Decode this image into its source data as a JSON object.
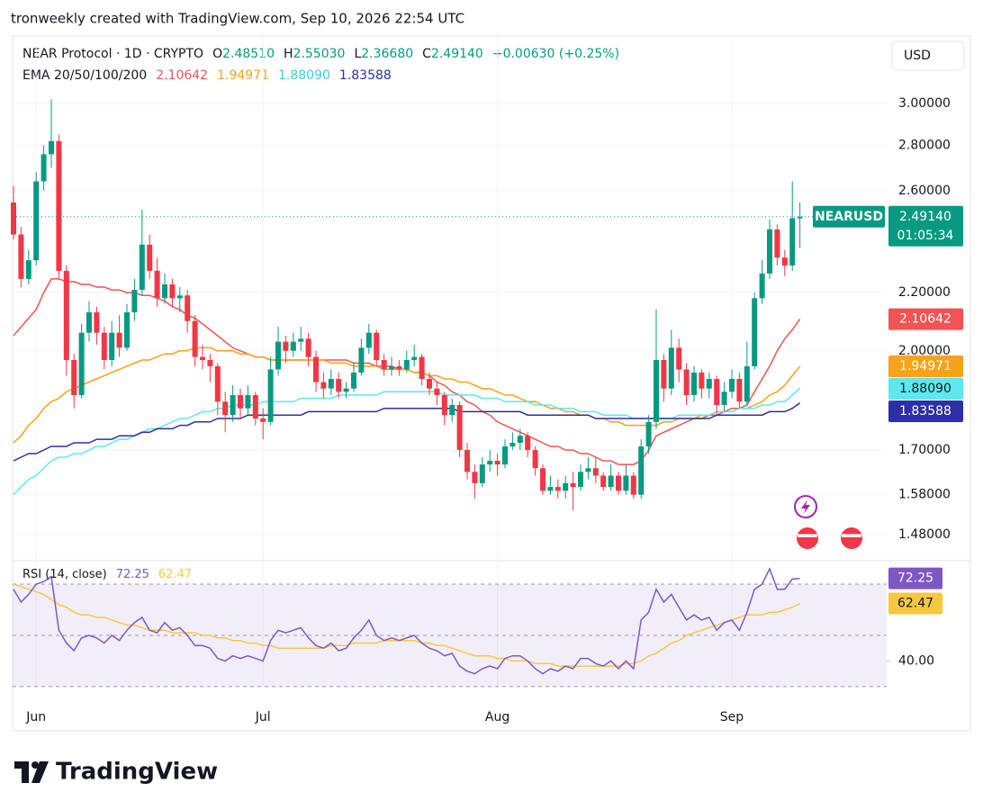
{
  "header": {
    "caption": "tronweekly created with TradingView.com, Sep 10, 2026 22:54 UTC",
    "symbol": "NEAR Protocol · 1D · CRYPTO",
    "ohlc_keys": [
      "O",
      "H",
      "L",
      "C"
    ],
    "ohlc_values": [
      "2.48510",
      "2.55030",
      "2.36680",
      "2.49140"
    ],
    "change": "+0.00630 (+0.25%)",
    "ema_title": "EMA 20/50/100/200",
    "ema_values": [
      "2.10642",
      "1.94971",
      "1.88090",
      "1.83588"
    ],
    "currency": "USD",
    "ticker": "NEARUSD",
    "price_badge": "2.49140",
    "countdown": "01:05:34"
  },
  "footer": {
    "brand": "TradingView"
  },
  "chart_data": {
    "type": "candlestick",
    "log_scale": true,
    "grid": true,
    "categories": [
      null,
      null,
      null,
      "Jun",
      null,
      null,
      null,
      null,
      null,
      null,
      null,
      null,
      null,
      null,
      null,
      null,
      null,
      null,
      null,
      null,
      null,
      null,
      null,
      null,
      null,
      null,
      null,
      null,
      null,
      null,
      null,
      null,
      null,
      "Jul",
      null,
      null,
      null,
      null,
      null,
      null,
      null,
      null,
      null,
      null,
      null,
      null,
      null,
      null,
      null,
      null,
      null,
      null,
      null,
      null,
      null,
      null,
      null,
      null,
      null,
      null,
      null,
      null,
      null,
      null,
      "Aug",
      null,
      null,
      null,
      null,
      null,
      null,
      null,
      null,
      null,
      null,
      null,
      null,
      null,
      null,
      null,
      null,
      null,
      null,
      null,
      null,
      null,
      null,
      null,
      null,
      null,
      null,
      null,
      null,
      null,
      null,
      "Sep",
      null,
      null,
      null,
      null,
      null,
      null,
      null,
      null,
      null
    ],
    "up_color": "#089981",
    "down_color": "#f23645",
    "open": [
      2.55,
      2.42,
      2.25,
      2.32,
      2.64,
      2.76,
      2.82,
      2.28,
      1.97,
      1.86,
      2.06,
      2.13,
      2.06,
      1.97,
      2.06,
      2.01,
      2.13,
      2.21,
      2.38,
      2.28,
      2.18,
      2.23,
      2.18,
      2.19,
      2.1,
      1.98,
      1.97,
      1.95,
      1.84,
      1.8,
      1.86,
      1.82,
      1.86,
      1.79,
      1.78,
      1.94,
      2.03,
      2.0,
      2.03,
      2.04,
      1.98,
      1.9,
      1.88,
      1.91,
      1.87,
      1.88,
      1.93,
      2.01,
      2.06,
      1.97,
      1.94,
      1.95,
      1.94,
      1.97,
      1.98,
      1.91,
      1.88,
      1.86,
      1.8,
      1.83,
      1.7,
      1.64,
      1.61,
      1.66,
      1.67,
      1.66,
      1.71,
      1.72,
      1.74,
      1.7,
      1.65,
      1.59,
      1.6,
      1.59,
      1.61,
      1.6,
      1.64,
      1.65,
      1.63,
      1.6,
      1.63,
      1.59,
      1.63,
      1.58,
      1.71,
      1.78,
      1.97,
      1.88,
      2.01,
      1.94,
      1.86,
      1.93,
      1.88,
      1.91,
      1.83,
      1.87,
      1.91,
      1.84,
      1.95,
      2.18,
      2.27,
      2.44,
      2.33,
      2.3,
      2.4851
    ],
    "high": [
      2.62,
      2.45,
      2.36,
      2.68,
      2.8,
      3.02,
      2.85,
      2.3,
      1.99,
      2.09,
      2.17,
      2.15,
      2.08,
      2.1,
      2.12,
      2.16,
      2.25,
      2.52,
      2.42,
      2.33,
      2.27,
      2.25,
      2.22,
      2.21,
      2.12,
      2.02,
      1.99,
      1.96,
      1.87,
      1.89,
      1.88,
      1.89,
      1.87,
      1.82,
      1.98,
      2.08,
      2.05,
      2.06,
      2.08,
      2.06,
      2.0,
      1.93,
      1.94,
      1.93,
      1.9,
      1.96,
      2.04,
      2.09,
      2.07,
      1.99,
      1.98,
      1.97,
      2.0,
      2.02,
      1.99,
      1.93,
      1.9,
      1.87,
      1.85,
      1.84,
      1.72,
      1.66,
      1.68,
      1.7,
      1.69,
      1.73,
      1.75,
      1.76,
      1.75,
      1.71,
      1.66,
      1.63,
      1.62,
      1.63,
      1.64,
      1.66,
      1.68,
      1.68,
      1.64,
      1.66,
      1.64,
      1.66,
      1.64,
      1.73,
      1.8,
      2.14,
      1.99,
      2.07,
      2.04,
      1.96,
      1.95,
      1.94,
      1.93,
      1.92,
      1.9,
      1.94,
      1.93,
      2.03,
      2.2,
      2.32,
      2.48,
      2.46,
      2.36,
      2.64,
      2.5503
    ],
    "low": [
      2.4,
      2.22,
      2.23,
      2.3,
      2.6,
      2.7,
      2.25,
      1.92,
      1.82,
      1.85,
      2.03,
      2.02,
      1.94,
      1.95,
      1.98,
      2.0,
      2.1,
      2.19,
      2.25,
      2.15,
      2.16,
      2.15,
      2.13,
      2.06,
      1.95,
      1.94,
      1.9,
      1.8,
      1.75,
      1.78,
      1.79,
      1.8,
      1.77,
      1.73,
      1.77,
      1.92,
      1.96,
      1.98,
      2.0,
      1.95,
      1.87,
      1.85,
      1.86,
      1.85,
      1.85,
      1.87,
      1.92,
      1.99,
      1.95,
      1.92,
      1.92,
      1.92,
      1.93,
      1.95,
      1.89,
      1.86,
      1.83,
      1.77,
      1.78,
      1.68,
      1.62,
      1.57,
      1.6,
      1.64,
      1.63,
      1.65,
      1.7,
      1.7,
      1.68,
      1.63,
      1.58,
      1.58,
      1.57,
      1.57,
      1.54,
      1.59,
      1.62,
      1.61,
      1.59,
      1.59,
      1.58,
      1.58,
      1.57,
      1.57,
      1.69,
      1.76,
      1.84,
      1.86,
      1.9,
      1.83,
      1.84,
      1.85,
      1.85,
      1.8,
      1.81,
      1.85,
      1.82,
      1.83,
      1.94,
      2.16,
      2.25,
      2.3,
      2.26,
      2.28,
      2.3668
    ],
    "close": [
      2.42,
      2.25,
      2.32,
      2.64,
      2.76,
      2.82,
      2.28,
      1.97,
      1.86,
      2.06,
      2.13,
      2.06,
      1.97,
      2.06,
      2.01,
      2.13,
      2.21,
      2.38,
      2.28,
      2.18,
      2.23,
      2.18,
      2.19,
      2.1,
      1.98,
      1.97,
      1.95,
      1.84,
      1.8,
      1.86,
      1.82,
      1.86,
      1.79,
      1.78,
      1.94,
      2.03,
      2.0,
      2.03,
      2.04,
      1.98,
      1.9,
      1.88,
      1.91,
      1.87,
      1.88,
      1.93,
      2.01,
      2.06,
      1.97,
      1.94,
      1.95,
      1.94,
      1.97,
      1.98,
      1.91,
      1.88,
      1.86,
      1.8,
      1.83,
      1.7,
      1.64,
      1.61,
      1.66,
      1.67,
      1.66,
      1.71,
      1.72,
      1.74,
      1.7,
      1.65,
      1.59,
      1.6,
      1.59,
      1.61,
      1.6,
      1.64,
      1.65,
      1.63,
      1.6,
      1.63,
      1.59,
      1.63,
      1.58,
      1.71,
      1.78,
      1.97,
      1.88,
      2.01,
      1.94,
      1.86,
      1.93,
      1.88,
      1.91,
      1.83,
      1.87,
      1.91,
      1.84,
      1.95,
      2.18,
      2.27,
      2.44,
      2.33,
      2.3,
      2.4851,
      2.4914
    ],
    "series": [
      {
        "color": "#f05454",
        "badge_text": "#ffffff",
        "values": [
          2.05,
          2.08,
          2.11,
          2.14,
          2.2,
          2.25,
          2.25,
          2.24,
          2.24,
          2.23,
          2.23,
          2.22,
          2.22,
          2.21,
          2.21,
          2.2,
          2.2,
          2.19,
          2.19,
          2.18,
          2.17,
          2.15,
          2.14,
          2.12,
          2.11,
          2.09,
          2.07,
          2.05,
          2.03,
          2.01,
          2.0,
          1.99,
          1.98,
          1.98,
          1.97,
          1.97,
          1.97,
          1.97,
          1.97,
          1.97,
          1.97,
          1.97,
          1.97,
          1.97,
          1.97,
          1.96,
          1.96,
          1.96,
          1.95,
          1.95,
          1.95,
          1.94,
          1.94,
          1.93,
          1.93,
          1.92,
          1.9,
          1.89,
          1.87,
          1.86,
          1.84,
          1.83,
          1.81,
          1.8,
          1.78,
          1.77,
          1.76,
          1.75,
          1.74,
          1.73,
          1.72,
          1.71,
          1.71,
          1.7,
          1.7,
          1.69,
          1.69,
          1.68,
          1.67,
          1.67,
          1.66,
          1.66,
          1.66,
          1.67,
          1.7,
          1.74,
          1.75,
          1.76,
          1.77,
          1.78,
          1.79,
          1.79,
          1.8,
          1.8,
          1.81,
          1.82,
          1.82,
          1.83,
          1.87,
          1.91,
          1.95,
          2.0,
          2.04,
          2.07,
          2.10642
        ]
      },
      {
        "color": "#f7a21b",
        "badge_text": "#ffffff",
        "values": [
          1.72,
          1.74,
          1.77,
          1.79,
          1.82,
          1.84,
          1.85,
          1.87,
          1.88,
          1.89,
          1.9,
          1.91,
          1.92,
          1.93,
          1.94,
          1.95,
          1.96,
          1.97,
          1.97,
          1.98,
          1.99,
          1.99,
          2.0,
          2.0,
          2.01,
          2.01,
          2.01,
          2.0,
          2.0,
          2.0,
          1.99,
          1.99,
          1.98,
          1.98,
          1.97,
          1.97,
          1.97,
          1.97,
          1.97,
          1.97,
          1.97,
          1.97,
          1.96,
          1.96,
          1.96,
          1.95,
          1.95,
          1.95,
          1.95,
          1.94,
          1.94,
          1.94,
          1.94,
          1.93,
          1.93,
          1.92,
          1.92,
          1.91,
          1.91,
          1.9,
          1.9,
          1.89,
          1.88,
          1.88,
          1.87,
          1.86,
          1.86,
          1.85,
          1.84,
          1.84,
          1.83,
          1.82,
          1.82,
          1.81,
          1.81,
          1.8,
          1.8,
          1.79,
          1.79,
          1.78,
          1.78,
          1.77,
          1.77,
          1.77,
          1.77,
          1.77,
          1.78,
          1.78,
          1.79,
          1.79,
          1.79,
          1.8,
          1.8,
          1.81,
          1.81,
          1.81,
          1.82,
          1.82,
          1.83,
          1.84,
          1.86,
          1.87,
          1.89,
          1.92,
          1.94971
        ]
      },
      {
        "color": "#5ce8ee",
        "badge_text": "#131722",
        "values": [
          1.58,
          1.6,
          1.62,
          1.63,
          1.65,
          1.67,
          1.68,
          1.68,
          1.69,
          1.69,
          1.7,
          1.71,
          1.71,
          1.72,
          1.73,
          1.73,
          1.74,
          1.75,
          1.76,
          1.76,
          1.77,
          1.78,
          1.79,
          1.79,
          1.8,
          1.81,
          1.81,
          1.82,
          1.82,
          1.83,
          1.83,
          1.83,
          1.83,
          1.84,
          1.84,
          1.84,
          1.84,
          1.84,
          1.85,
          1.85,
          1.85,
          1.85,
          1.85,
          1.86,
          1.86,
          1.86,
          1.86,
          1.86,
          1.86,
          1.87,
          1.87,
          1.87,
          1.87,
          1.87,
          1.87,
          1.87,
          1.87,
          1.86,
          1.86,
          1.86,
          1.86,
          1.86,
          1.85,
          1.85,
          1.85,
          1.84,
          1.84,
          1.84,
          1.84,
          1.83,
          1.83,
          1.83,
          1.82,
          1.82,
          1.82,
          1.81,
          1.81,
          1.81,
          1.8,
          1.8,
          1.8,
          1.8,
          1.79,
          1.79,
          1.79,
          1.79,
          1.79,
          1.79,
          1.8,
          1.8,
          1.8,
          1.8,
          1.8,
          1.81,
          1.81,
          1.81,
          1.82,
          1.82,
          1.82,
          1.83,
          1.83,
          1.84,
          1.84,
          1.86,
          1.8809
        ]
      },
      {
        "color": "#2e2ea6",
        "badge_text": "#ffffff",
        "values": [
          1.67,
          1.68,
          1.69,
          1.69,
          1.7,
          1.71,
          1.71,
          1.71,
          1.72,
          1.72,
          1.72,
          1.73,
          1.73,
          1.73,
          1.74,
          1.74,
          1.74,
          1.75,
          1.75,
          1.76,
          1.76,
          1.76,
          1.77,
          1.77,
          1.78,
          1.78,
          1.78,
          1.79,
          1.79,
          1.79,
          1.79,
          1.8,
          1.8,
          1.8,
          1.8,
          1.8,
          1.8,
          1.8,
          1.8,
          1.81,
          1.81,
          1.81,
          1.81,
          1.81,
          1.81,
          1.81,
          1.81,
          1.81,
          1.81,
          1.82,
          1.82,
          1.82,
          1.82,
          1.82,
          1.82,
          1.82,
          1.82,
          1.82,
          1.82,
          1.81,
          1.81,
          1.81,
          1.81,
          1.81,
          1.81,
          1.81,
          1.81,
          1.81,
          1.8,
          1.8,
          1.8,
          1.8,
          1.8,
          1.8,
          1.8,
          1.8,
          1.8,
          1.79,
          1.79,
          1.79,
          1.79,
          1.79,
          1.79,
          1.79,
          1.79,
          1.79,
          1.79,
          1.79,
          1.79,
          1.79,
          1.79,
          1.79,
          1.79,
          1.8,
          1.8,
          1.8,
          1.8,
          1.8,
          1.8,
          1.8,
          1.81,
          1.81,
          1.81,
          1.82,
          1.83588
        ]
      }
    ],
    "ylim": [
      1.42,
      3.35
    ],
    "yticks": [
      {
        "value": 3,
        "label": "3.00000"
      },
      {
        "value": 2.8,
        "label": "2.80000"
      },
      {
        "value": 2.6,
        "label": "2.60000"
      },
      {
        "value": 2.2,
        "label": "2.20000"
      },
      {
        "value": 2,
        "label": "2.00000"
      },
      {
        "value": 1.7,
        "label": "1.70000"
      },
      {
        "value": 1.58,
        "label": "1.58000"
      },
      {
        "value": 1.48,
        "label": "1.48000"
      }
    ],
    "rsi": {
      "title": "RSI (14, close)",
      "ylim": [
        28.9,
        77.4
      ],
      "yticks": [
        {
          "value": 40,
          "label": "40.00"
        }
      ],
      "levels": [
        70,
        50,
        30
      ],
      "band_color": "#7e57c2",
      "series": [
        {
          "color": "#7e57c2",
          "badge_text": "#ffffff",
          "values": [
            68,
            63,
            66,
            70,
            71,
            73,
            52,
            47,
            44,
            49,
            50,
            49,
            47,
            50,
            48,
            52,
            55,
            57,
            52,
            51,
            55,
            52,
            53,
            50,
            46,
            46,
            45,
            41,
            40,
            42,
            41,
            42,
            41,
            40,
            48,
            52,
            51,
            52,
            53,
            49,
            46,
            45,
            47,
            44,
            45,
            49,
            52,
            56,
            50,
            48,
            49,
            48,
            49,
            50,
            47,
            45,
            44,
            42,
            43,
            38,
            36,
            35,
            37,
            38,
            37,
            41,
            42,
            42,
            40,
            37,
            35,
            37,
            36,
            38,
            37,
            41,
            41,
            39,
            38,
            40,
            37,
            40,
            37,
            56,
            59,
            68,
            63,
            66,
            61,
            56,
            58,
            56,
            57,
            52,
            55,
            56,
            52,
            59,
            68,
            70,
            76,
            68,
            68,
            72,
            72.25
          ]
        },
        {
          "color": "#f5c842",
          "badge_text": "#131722",
          "values": [
            70,
            69,
            68,
            67,
            66,
            64,
            62,
            61,
            59,
            58,
            58,
            57,
            57,
            56,
            55,
            54,
            54,
            53,
            52,
            52,
            52,
            51,
            51,
            51,
            51,
            50,
            50,
            49,
            49,
            48,
            48,
            47,
            47,
            46,
            46,
            45,
            45,
            45,
            45,
            45,
            45,
            45,
            46,
            46,
            46,
            47,
            47,
            47,
            47,
            48,
            48,
            48,
            48,
            48,
            47,
            47,
            46,
            46,
            45,
            44,
            43,
            42,
            42,
            42,
            41,
            41,
            40,
            40,
            40,
            39,
            39,
            39,
            38,
            38,
            38,
            38,
            38,
            38,
            38,
            38,
            38,
            39,
            39,
            40,
            42,
            43,
            45,
            47,
            48,
            50,
            51,
            52,
            53,
            54,
            55,
            56,
            57,
            58,
            58,
            58,
            59,
            59,
            60,
            61,
            62.47
          ]
        }
      ]
    }
  }
}
